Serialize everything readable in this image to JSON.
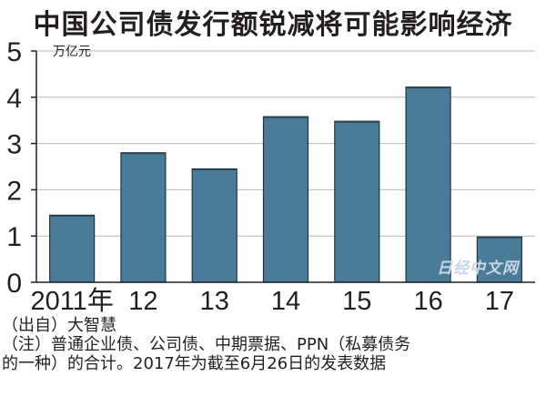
{
  "title": "中国公司债发行额锐减将可能影响经济",
  "chart_data": {
    "type": "bar",
    "categories": [
      "2011年",
      "12",
      "13",
      "14",
      "15",
      "16",
      "17"
    ],
    "values": [
      1.45,
      2.8,
      2.45,
      3.58,
      3.48,
      4.22,
      0.98
    ],
    "ylim": [
      0,
      5
    ],
    "yticks": [
      0,
      1,
      2,
      3,
      4,
      5
    ],
    "unit": "万亿元",
    "grid": true,
    "bar_color": "#4a7c99"
  },
  "notes": {
    "source": "（出自）大智慧",
    "note_line1": "（注）普通企业债、公司债、中期票据、PPN（私募债务",
    "note_line2": "的一种）的合计。2017年为截至6月26日的发表数据"
  },
  "watermark": "日经中文网"
}
